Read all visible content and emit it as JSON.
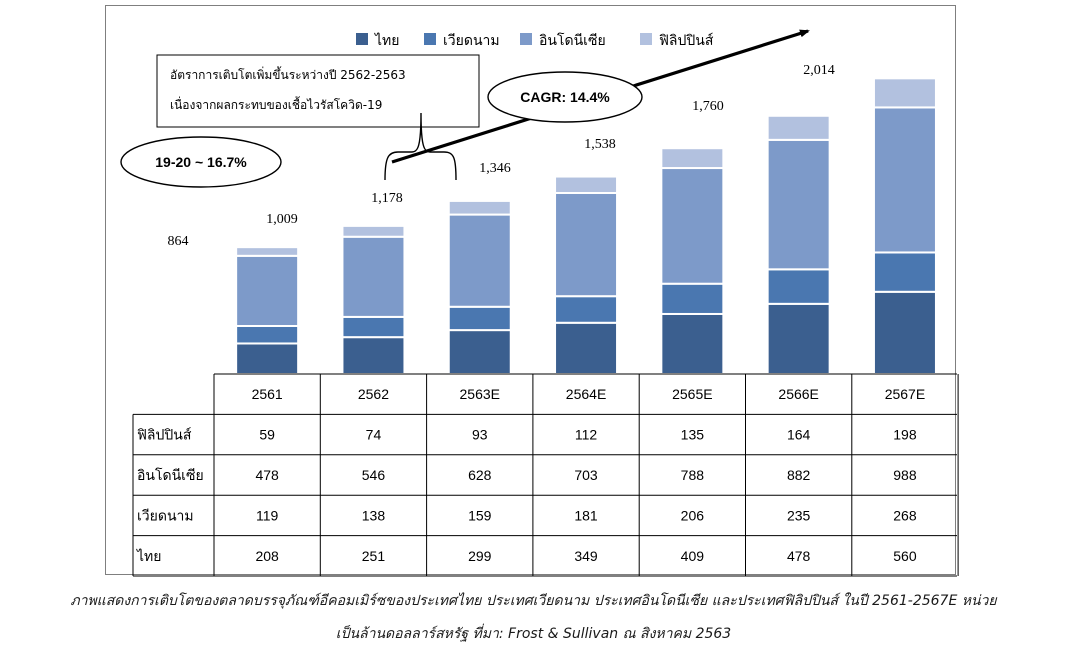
{
  "chart_data": {
    "type": "bar",
    "stacked": true,
    "categories": [
      "2561",
      "2562",
      "2563E",
      "2564E",
      "2565E",
      "2566E",
      "2567E"
    ],
    "series": [
      {
        "name": "ไทย",
        "values": [
          208,
          251,
          299,
          349,
          409,
          478,
          560
        ],
        "color": "#3b5f8f"
      },
      {
        "name": "เวียดนาม",
        "values": [
          119,
          138,
          159,
          181,
          206,
          235,
          268
        ],
        "color": "#4a77b0"
      },
      {
        "name": "อินโดนีเซีย",
        "values": [
          478,
          546,
          628,
          703,
          788,
          882,
          988
        ],
        "color": "#7d9ac9"
      },
      {
        "name": "ฟิลิปปินส์",
        "values": [
          59,
          74,
          93,
          112,
          135,
          164,
          198
        ],
        "color": "#b2c1df"
      }
    ],
    "totals": [
      "864",
      "1,009",
      "1,178",
      "1,346",
      "1,538",
      "1,760",
      "2,014"
    ],
    "table_rows": [
      "ฟิลิปปินส์",
      "อินโดนีเซีย",
      "เวียดนาม",
      "ไทย"
    ],
    "legend_position": "top",
    "ylim": [
      0,
      2200
    ],
    "grid": false,
    "annotations": {
      "growth_box_line1": "อัตราการเติบโตเพิ่มขึ้นระหว่างปี 2562-2563",
      "growth_box_line2": "เนื่องจากผลกระทบของเชื้อไวรัสโควิด-19",
      "cagr": "CAGR: 14.4%",
      "growth_19_20": "19-20 ~ 16.7%"
    }
  },
  "caption": {
    "line1": "ภาพแสดงการเติบโตของตลาดบรรจุภัณฑ์อีคอมเมิร์ซของประเทศไทย ประเทศเวียดนาม ประเทศอินโดนีเซีย และประเทศฟิลิปปินส์ ในปี 2561-2567E หน่วย",
    "line2": "เป็นล้านดอลลาร์สหรัฐ ที่มา: Frost & Sullivan ณ สิงหาคม 2563"
  }
}
